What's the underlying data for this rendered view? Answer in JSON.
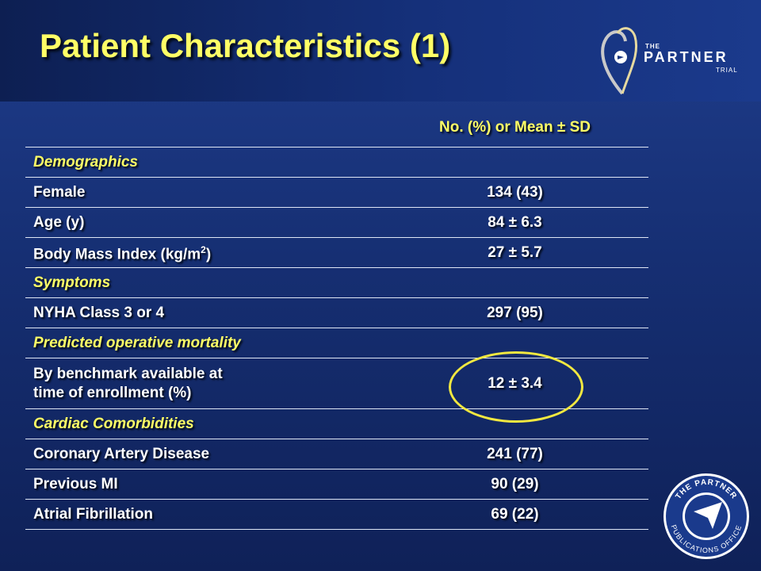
{
  "slide": {
    "title": "Patient Characteristics (1)"
  },
  "logo": {
    "the": "THE",
    "partner": "PARTNER",
    "trial": "TRIAL"
  },
  "seal": {
    "top_text": "THE PARTNER",
    "bottom_text": "PUBLICATIONS OFFICE"
  },
  "table": {
    "header": "No. (%) or Mean ± SD",
    "rows": [
      {
        "label": "Demographics",
        "value": "",
        "section": true
      },
      {
        "label": "Female",
        "value": "134 (43)"
      },
      {
        "label": "Age (y)",
        "value": "84 ± 6.3"
      },
      {
        "label": "Body Mass Index (kg/m",
        "label_sup": "2",
        "label_suffix": ")",
        "value": "27 ± 5.7"
      },
      {
        "label": "Symptoms",
        "value": "",
        "section": true
      },
      {
        "label": "NYHA Class 3 or 4",
        "value": "297 (95)"
      },
      {
        "label": "Predicted operative mortality",
        "value": "",
        "section": true
      },
      {
        "label_line1": "By benchmark available at",
        "label_line2": "time of enrollment (%)",
        "value": "12 ± 3.4",
        "highlighted": true
      },
      {
        "label": "Cardiac Comorbidities",
        "value": "",
        "section": true
      },
      {
        "label": "Coronary Artery Disease",
        "value": "241 (77)"
      },
      {
        "label": "Previous MI",
        "value": "90 (29)"
      },
      {
        "label": "Atrial Fibrillation",
        "value": "69 (22)"
      }
    ]
  },
  "colors": {
    "title": "#ffff66",
    "section": "#ffff66",
    "text": "#ffffff",
    "highlight": "#f2e840",
    "background": "#1a3580"
  }
}
